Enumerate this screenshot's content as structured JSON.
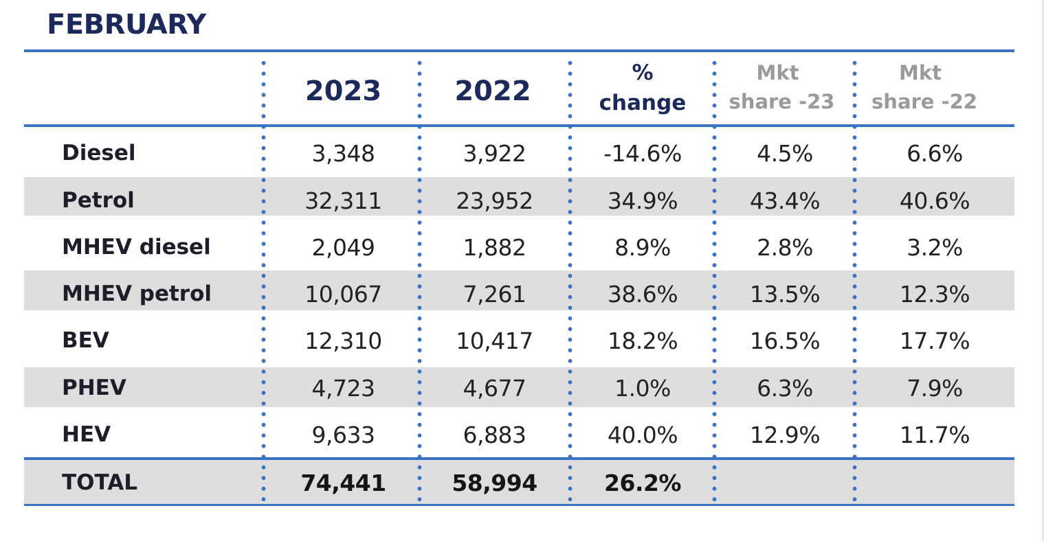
{
  "title": "FEBRUARY",
  "chart_data": {
    "type": "table",
    "title": "FEBRUARY",
    "columns": [
      "",
      "2023",
      "2022",
      "% change",
      "Mkt share -23",
      "Mkt share -22"
    ],
    "column_headers": {
      "c2023": "2023",
      "c2022": "2022",
      "change_l1": "%",
      "change_l2": "change",
      "share23_l1": "Mkt",
      "share23_l2": "share -23",
      "share22_l1": "Mkt",
      "share22_l2": "share -22"
    },
    "rows": [
      {
        "label": "Diesel",
        "y2023": "3,348",
        "y2022": "3,922",
        "change": "-14.6%",
        "share23": "4.5%",
        "share22": "6.6%"
      },
      {
        "label": "Petrol",
        "y2023": "32,311",
        "y2022": "23,952",
        "change": "34.9%",
        "share23": "43.4%",
        "share22": "40.6%"
      },
      {
        "label": "MHEV diesel",
        "y2023": "2,049",
        "y2022": "1,882",
        "change": "8.9%",
        "share23": "2.8%",
        "share22": "3.2%"
      },
      {
        "label": "MHEV petrol",
        "y2023": "10,067",
        "y2022": "7,261",
        "change": "38.6%",
        "share23": "13.5%",
        "share22": "12.3%"
      },
      {
        "label": "BEV",
        "y2023": "12,310",
        "y2022": "10,417",
        "change": "18.2%",
        "share23": "16.5%",
        "share22": "17.7%"
      },
      {
        "label": "PHEV",
        "y2023": "4,723",
        "y2022": "4,677",
        "change": "1.0%",
        "share23": "6.3%",
        "share22": "7.9%"
      },
      {
        "label": "HEV",
        "y2023": "9,633",
        "y2022": "6,883",
        "change": "40.0%",
        "share23": "12.9%",
        "share22": "11.7%"
      }
    ],
    "total": {
      "label": "TOTAL",
      "y2023": "74,441",
      "y2022": "58,994",
      "change": "26.2%",
      "share23": "",
      "share22": ""
    }
  },
  "colors": {
    "title_navy": "#1c2a5b",
    "rule_blue": "#3a72c4",
    "band_grey": "#dedede",
    "share_header_grey": "#9a9a9a"
  }
}
